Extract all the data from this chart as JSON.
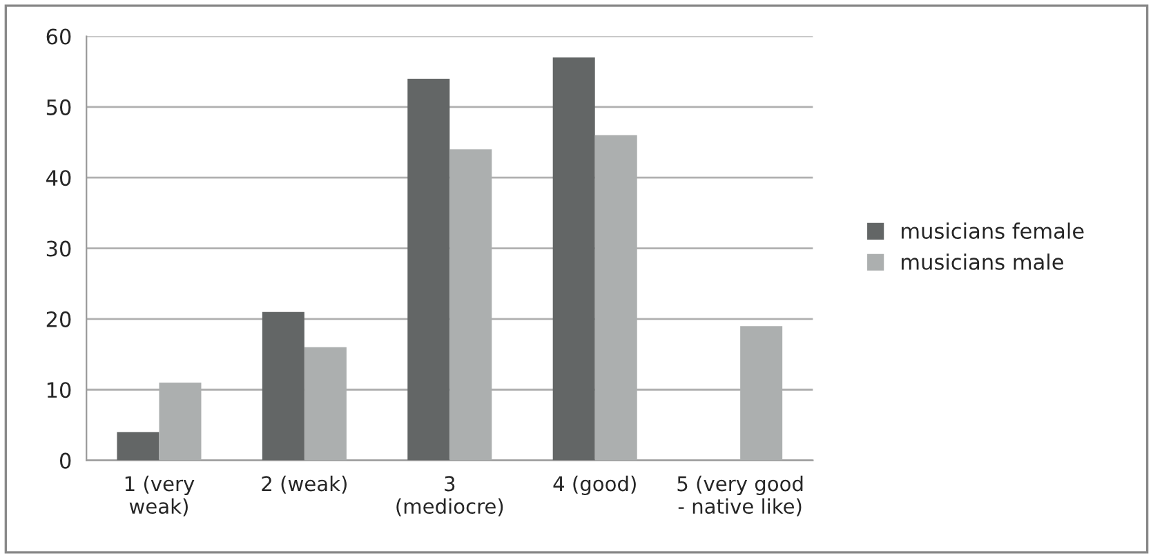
{
  "chart_data": {
    "type": "bar",
    "categories": [
      "1 (very\nweak)",
      "2 (weak)",
      "3\n(mediocre)",
      "4 (good)",
      "5 (very good\n- native like)"
    ],
    "series": [
      {
        "name": "musicians female",
        "color": "#636666",
        "values": [
          4,
          21,
          54,
          57,
          null
        ]
      },
      {
        "name": "musicians male",
        "color": "#acafaf",
        "values": [
          11,
          16,
          44,
          46,
          19
        ]
      }
    ],
    "ylim": [
      0,
      60
    ],
    "yticks": [
      0,
      10,
      20,
      30,
      40,
      50,
      60
    ],
    "grid": "y",
    "legend": "right"
  }
}
